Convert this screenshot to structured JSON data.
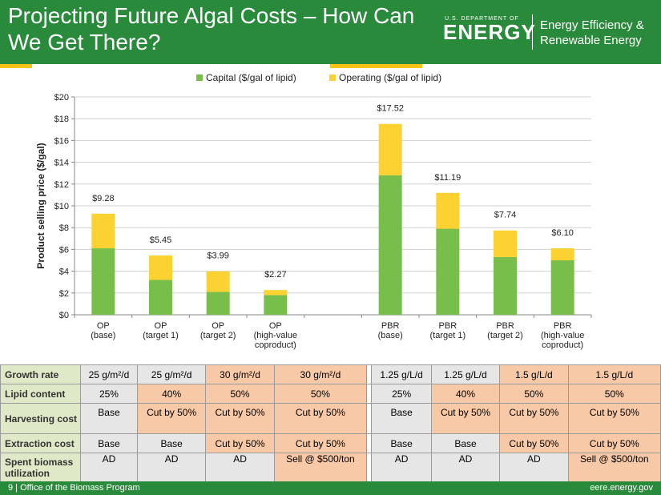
{
  "header": {
    "title_line1": "Projecting Future Algal Costs – How Can",
    "title_line2": "We Get There?",
    "doe_small": "U.S. DEPARTMENT OF",
    "doe_big": "ENERGY",
    "eere_line1": "Energy Efficiency &",
    "eere_line2": "Renewable Energy"
  },
  "colors": {
    "green": "#77bf4a",
    "yellow": "#fcd132",
    "header_green": "#2a8a3c"
  },
  "chart_data": {
    "type": "bar",
    "stacked": true,
    "ylabel": "Product selling price ($/gal)",
    "ylim": [
      0,
      20
    ],
    "yticks": [
      "$0",
      "$2",
      "$4",
      "$6",
      "$8",
      "$10",
      "$12",
      "$14",
      "$16",
      "$18",
      "$20"
    ],
    "legend": [
      "Capital ($/gal of lipid)",
      "Operating ($/gal of lipid)"
    ],
    "legend_position": "top",
    "categories": [
      [
        "OP",
        "(base)"
      ],
      [
        "OP",
        "(target 1)"
      ],
      [
        "OP",
        "(target 2)"
      ],
      [
        "OP",
        "(high-value",
        "coproduct)"
      ],
      [
        "PBR",
        "(base)"
      ],
      [
        "PBR",
        "(target 1)"
      ],
      [
        "PBR",
        "(target 2)"
      ],
      [
        "PBR",
        "(high-value",
        "coproduct)"
      ]
    ],
    "series": [
      {
        "name": "Capital ($/gal of lipid)",
        "values": [
          6.1,
          3.2,
          2.1,
          1.8,
          12.8,
          7.9,
          5.3,
          5.0
        ]
      },
      {
        "name": "Operating ($/gal of lipid)",
        "values": [
          3.18,
          2.25,
          1.89,
          0.47,
          4.72,
          3.29,
          2.44,
          1.1
        ]
      }
    ],
    "totals": [
      "$9.28",
      "$5.45",
      "$3.99",
      "$2.27",
      "$17.52",
      "$11.19",
      "$7.74",
      "$6.10"
    ],
    "total_values": [
      9.28,
      5.45,
      3.99,
      2.27,
      17.52,
      11.19,
      7.74,
      6.1
    ]
  },
  "table": {
    "rows": [
      {
        "label": "Growth rate",
        "cells": [
          "25 g/m²/d",
          "25 g/m²/d",
          "30 g/m²/d",
          "30 g/m²/d",
          "",
          "1.25 g/L/d",
          "1.25 g/L/d",
          "1.5 g/L/d",
          "1.5 g/L/d"
        ],
        "shade": [
          "grey",
          "grey",
          "peach",
          "peach",
          "white",
          "grey",
          "grey",
          "peach",
          "peach"
        ]
      },
      {
        "label": "Lipid content",
        "cells": [
          "25%",
          "40%",
          "50%",
          "50%",
          "",
          "25%",
          "40%",
          "50%",
          "50%"
        ],
        "shade": [
          "grey",
          "peach",
          "peach",
          "peach",
          "white",
          "grey",
          "peach",
          "peach",
          "peach"
        ]
      },
      {
        "label": "Harvesting cost",
        "cells": [
          "Base",
          "Cut by 50%",
          "Cut by 50%",
          "Cut by 50%",
          "",
          "Base",
          "Cut by 50%",
          "Cut by 50%",
          "Cut by 50%"
        ],
        "shade": [
          "grey",
          "peach",
          "peach",
          "peach",
          "white",
          "grey",
          "peach",
          "peach",
          "peach"
        ]
      },
      {
        "label": "Extraction cost",
        "cells": [
          "Base",
          "Base",
          "Cut by 50%",
          "Cut by 50%",
          "",
          "Base",
          "Base",
          "Cut by 50%",
          "Cut by 50%"
        ],
        "shade": [
          "grey",
          "grey",
          "peach",
          "peach",
          "white",
          "grey",
          "grey",
          "peach",
          "peach"
        ]
      },
      {
        "label": "Spent biomass utilization",
        "cells": [
          "AD",
          "AD",
          "AD",
          "Sell @ $500/ton",
          "",
          "AD",
          "AD",
          "AD",
          "Sell @ $500/ton"
        ],
        "shade": [
          "grey",
          "grey",
          "grey",
          "peach",
          "white",
          "grey",
          "grey",
          "grey",
          "peach"
        ]
      }
    ]
  },
  "footer": {
    "left": "9 | Office of the Biomass Program",
    "right": "eere.energy.gov"
  }
}
